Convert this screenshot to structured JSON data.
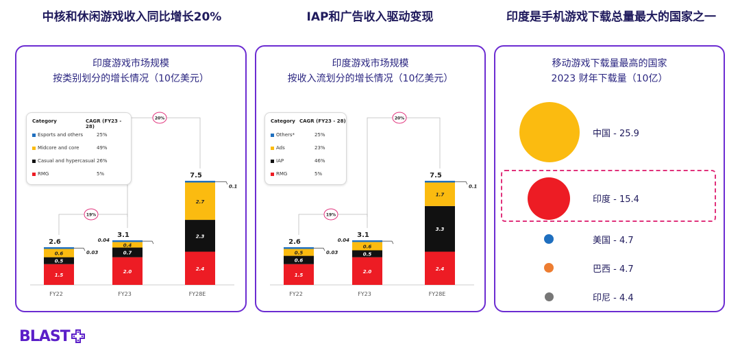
{
  "headings": [
    "中核和休闲游戏收入同比增长20%",
    "IAP和广告收入驱动变现",
    "印度是手机游戏下载总量最大的国家之一"
  ],
  "chart_data": [
    {
      "type": "bar",
      "title": "印度游戏市场规模",
      "subtitle": "按类别划分的增长情况（10亿美元）",
      "categories": [
        "FY22",
        "FY23",
        "FY28E"
      ],
      "series": [
        {
          "name": "RMG",
          "values": [
            1.5,
            2.0,
            2.4
          ],
          "color": "#ed1c24"
        },
        {
          "name": "Casual and hypercasual",
          "values": [
            0.5,
            0.7,
            2.3
          ],
          "color": "#111111"
        },
        {
          "name": "Midcore and core",
          "values": [
            0.6,
            0.4,
            2.7
          ],
          "color": "#fbbb10"
        },
        {
          "name": "Esports and others",
          "values": [
            0.03,
            0.04,
            0.1
          ],
          "color": "#1f6fbf"
        }
      ],
      "segment_labels": [
        [
          "1.5",
          "0.5",
          "0.6",
          "0.03"
        ],
        [
          "2.0",
          "0.7",
          "0.4",
          "0.04"
        ],
        [
          "2.4",
          "2.3",
          "2.7",
          "0.1"
        ]
      ],
      "totals": [
        "2.6",
        "3.1",
        "7.5"
      ],
      "growth": [
        "19%",
        "20%"
      ],
      "legend": {
        "header": "Category",
        "cagr_header": "CAGR (FY23 - 28)",
        "items": [
          {
            "name": "Esports and others",
            "cagr": "25%",
            "color": "#1f6fbf"
          },
          {
            "name": "Midcore and core",
            "cagr": "49%",
            "color": "#fbbb10"
          },
          {
            "name": "Casual and hypercasual",
            "cagr": "26%",
            "color": "#111111"
          },
          {
            "name": "RMG",
            "cagr": "5%",
            "color": "#ed1c24"
          }
        ]
      }
    },
    {
      "type": "bar",
      "title": "印度游戏市场规模",
      "subtitle": "按收入流划分的增长情况（10亿美元）",
      "categories": [
        "FY22",
        "FY23",
        "FY28E"
      ],
      "series": [
        {
          "name": "RMG",
          "values": [
            1.5,
            2.0,
            2.4
          ],
          "color": "#ed1c24"
        },
        {
          "name": "IAP",
          "values": [
            0.6,
            0.5,
            3.3
          ],
          "color": "#111111"
        },
        {
          "name": "Ads",
          "values": [
            0.5,
            0.6,
            1.7
          ],
          "color": "#fbbb10"
        },
        {
          "name": "Others*",
          "values": [
            0.03,
            0.04,
            0.1
          ],
          "color": "#1f6fbf"
        }
      ],
      "segment_labels": [
        [
          "1.5",
          "0.6",
          "0.5",
          "0.03"
        ],
        [
          "2.0",
          "0.5",
          "0.6",
          "0.04"
        ],
        [
          "2.4",
          "3.3",
          "1.7",
          "0.1"
        ]
      ],
      "totals": [
        "2.6",
        "3.1",
        "7.5"
      ],
      "growth": [
        "19%",
        "20%"
      ],
      "legend": {
        "header": "Category",
        "cagr_header": "CAGR (FY23 - 28)",
        "items": [
          {
            "name": "Others*",
            "cagr": "25%",
            "color": "#1f6fbf"
          },
          {
            "name": "Ads",
            "cagr": "23%",
            "color": "#fbbb10"
          },
          {
            "name": "IAP",
            "cagr": "46%",
            "color": "#111111"
          },
          {
            "name": "RMG",
            "cagr": "5%",
            "color": "#ed1c24"
          }
        ]
      }
    },
    {
      "type": "bubble",
      "title": "移动游戏下载量最高的国家",
      "subtitle": "2023 财年下载量（10亿）",
      "items": [
        {
          "name": "中国",
          "value": 25.9,
          "label": "中国 - 25.9",
          "color": "#fbbb10"
        },
        {
          "name": "印度",
          "value": 15.4,
          "label": "印度 - 15.4",
          "color": "#ed1c24"
        },
        {
          "name": "美国",
          "value": 4.7,
          "label": "美国 - 4.7",
          "color": "#1f6fbf"
        },
        {
          "name": "巴西",
          "value": 4.7,
          "label": "巴西 - 4.7",
          "color": "#ed7d31"
        },
        {
          "name": "印尼",
          "value": 4.4,
          "label": "印尼 - 4.4",
          "color": "#777777"
        }
      ]
    }
  ],
  "logo": "BLAST"
}
